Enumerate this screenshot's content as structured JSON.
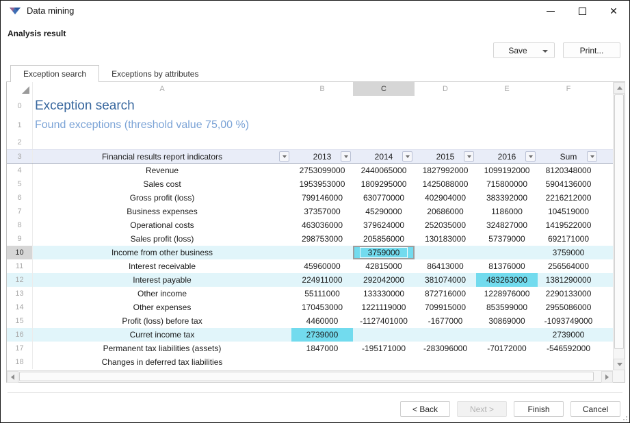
{
  "window": {
    "title": "Data mining"
  },
  "titlebar_icons": {
    "app_icon": "data-mining-triangle-logo",
    "minimize_icon": "minimize-dash",
    "maximize_icon": "maximize-square",
    "close_icon": "close-x"
  },
  "header": {
    "section_title": "Analysis result",
    "save_label": "Save",
    "print_label": "Print..."
  },
  "tabs": [
    {
      "label": "Exception search",
      "active": true
    },
    {
      "label": "Exceptions by attributes",
      "active": false
    }
  ],
  "colors": {
    "title_blue": "#38679e",
    "subtitle_blue": "#7ba3d6",
    "header_row_bg": "#e9edf8",
    "row_highlight": "#e1f5fa",
    "cell_highlight": "#72dbee",
    "selected_header_bg": "#d6d6d6"
  },
  "spreadsheet": {
    "corner_icon": "select-all-triangle",
    "filter_icon": "dropdown-arrow",
    "column_letters": [
      "A",
      "B",
      "C",
      "D",
      "E",
      "F"
    ],
    "selected_column_letter": "C",
    "selected_row_number": 10,
    "title_row": {
      "number": 0,
      "text": "Exception search"
    },
    "subtitle_row": {
      "number": 1,
      "text": "Found exceptions (threshold value 75,00 %)"
    },
    "blank_row_number": 2,
    "header_row": {
      "number": 3,
      "cells": [
        "Financial results report indicators",
        "2013",
        "2014",
        "2015",
        "2016",
        "Sum"
      ]
    },
    "data_rows": [
      {
        "number": 4,
        "label": "Revenue",
        "values": [
          "2753099000",
          "2440065000",
          "1827992000",
          "1099192000",
          "8120348000"
        ],
        "row_highlight": false,
        "highlight_cell": null,
        "selected_cell": null
      },
      {
        "number": 5,
        "label": "Sales cost",
        "values": [
          "1953953000",
          "1809295000",
          "1425088000",
          "715800000",
          "5904136000"
        ],
        "row_highlight": false,
        "highlight_cell": null,
        "selected_cell": null
      },
      {
        "number": 6,
        "label": "Gross profit (loss)",
        "values": [
          "799146000",
          "630770000",
          "402904000",
          "383392000",
          "2216212000"
        ],
        "row_highlight": false,
        "highlight_cell": null,
        "selected_cell": null
      },
      {
        "number": 7,
        "label": "Business expenses",
        "values": [
          "37357000",
          "45290000",
          "20686000",
          "1186000",
          "104519000"
        ],
        "row_highlight": false,
        "highlight_cell": null,
        "selected_cell": null
      },
      {
        "number": 8,
        "label": "Operational costs",
        "values": [
          "463036000",
          "379624000",
          "252035000",
          "324827000",
          "1419522000"
        ],
        "row_highlight": false,
        "highlight_cell": null,
        "selected_cell": null
      },
      {
        "number": 9,
        "label": "Sales profit (loss)",
        "values": [
          "298753000",
          "205856000",
          "130183000",
          "57379000",
          "692171000"
        ],
        "row_highlight": false,
        "highlight_cell": null,
        "selected_cell": null
      },
      {
        "number": 10,
        "label": "Income from other business",
        "values": [
          "",
          "3759000",
          "",
          "",
          "3759000"
        ],
        "row_highlight": true,
        "highlight_cell": null,
        "selected_cell": 1
      },
      {
        "number": 11,
        "label": "Interest receivable",
        "values": [
          "45960000",
          "42815000",
          "86413000",
          "81376000",
          "256564000"
        ],
        "row_highlight": false,
        "highlight_cell": null,
        "selected_cell": null
      },
      {
        "number": 12,
        "label": "Interest payable",
        "values": [
          "224911000",
          "292042000",
          "381074000",
          "483263000",
          "1381290000"
        ],
        "row_highlight": true,
        "highlight_cell": 3,
        "selected_cell": null
      },
      {
        "number": 13,
        "label": "Other income",
        "values": [
          "55111000",
          "133330000",
          "872716000",
          "1228976000",
          "2290133000"
        ],
        "row_highlight": false,
        "highlight_cell": null,
        "selected_cell": null
      },
      {
        "number": 14,
        "label": "Other expenses",
        "values": [
          "170453000",
          "1221119000",
          "709915000",
          "853599000",
          "2955086000"
        ],
        "row_highlight": false,
        "highlight_cell": null,
        "selected_cell": null
      },
      {
        "number": 15,
        "label": "Profit (loss) before tax",
        "values": [
          "4460000",
          "-1127401000",
          "-1677000",
          "30869000",
          "-1093749000"
        ],
        "row_highlight": false,
        "highlight_cell": null,
        "selected_cell": null
      },
      {
        "number": 16,
        "label": "Curret income tax",
        "values": [
          "2739000",
          "",
          "",
          "",
          "2739000"
        ],
        "row_highlight": true,
        "highlight_cell": 0,
        "selected_cell": null
      },
      {
        "number": 17,
        "label": "Permanent tax liabilities (assets)",
        "values": [
          "1847000",
          "-195171000",
          "-283096000",
          "-70172000",
          "-546592000"
        ],
        "row_highlight": false,
        "highlight_cell": null,
        "selected_cell": null
      },
      {
        "number": 18,
        "label": "Changes in deferred tax liabilities",
        "values": [
          "",
          "",
          "",
          "",
          ""
        ],
        "row_highlight": false,
        "highlight_cell": null,
        "selected_cell": null
      }
    ]
  },
  "footer": {
    "back_label": "< Back",
    "next_label": "Next >",
    "next_disabled": true,
    "finish_label": "Finish",
    "cancel_label": "Cancel"
  }
}
